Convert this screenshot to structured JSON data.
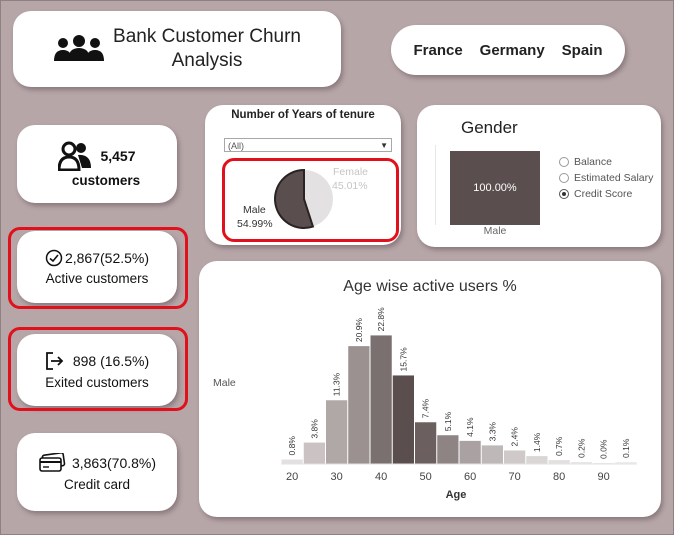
{
  "header": {
    "title_line1": "Bank Customer Churn",
    "title_line2": "Analysis"
  },
  "countries": [
    "France",
    "Germany",
    "Spain"
  ],
  "kpis": {
    "customers": {
      "value": "5,457",
      "label": "customers",
      "icon": "people-icon"
    },
    "active": {
      "value": "2,867(52.5%)",
      "label": "Active customers",
      "icon": "check-circle-icon"
    },
    "exited": {
      "value": "898 (16.5%)",
      "label": "Exited customers",
      "icon": "exit-icon"
    },
    "credit": {
      "value": "3,863(70.8%)",
      "label": "Credit card",
      "icon": "credit-card-icon"
    }
  },
  "tenure": {
    "title": "Number of Years of tenure",
    "filter_value": "(All)",
    "chart_data": {
      "type": "pie",
      "slices": [
        {
          "label": "Male",
          "value": 54.99,
          "display": "54.99%",
          "color": "#5a4e4e"
        },
        {
          "label": "Female",
          "value": 45.01,
          "display": "45.01%",
          "color": "#e3e1e1"
        }
      ]
    }
  },
  "gender": {
    "title": "Gender",
    "tile_value": "100.00%",
    "tile_label": "Male",
    "radio_options": [
      "Balance",
      "Estimated Salary",
      "Credit Score"
    ],
    "selected_option": "Credit Score"
  },
  "age_chart": {
    "title": "Age wise active users %",
    "row_label": "Male",
    "chart_data": {
      "type": "bar",
      "title": "Age wise active users %",
      "xlabel": "Age",
      "x": [
        20,
        25,
        30,
        35,
        40,
        45,
        50,
        55,
        60,
        65,
        70,
        75,
        80,
        85,
        90,
        95
      ],
      "values": [
        0.8,
        3.8,
        11.3,
        20.9,
        22.8,
        15.7,
        7.4,
        5.1,
        4.1,
        3.3,
        2.4,
        1.4,
        0.7,
        0.2,
        0.0,
        0.1
      ],
      "labels": [
        "0.8%",
        "3.8%",
        "11.3%",
        "20.9%",
        "22.8%",
        "15.7%",
        "7.4%",
        "5.1%",
        "4.1%",
        "3.3%",
        "2.4%",
        "1.4%",
        "0.7%",
        "0.2%",
        "0.0%",
        "0.1%"
      ],
      "x_ticks": [
        20,
        30,
        40,
        50,
        60,
        70,
        80,
        90
      ],
      "ylim": [
        0,
        25
      ],
      "colors": [
        "#e4e0e0",
        "#cbc3c3",
        "#b0a7a7",
        "#9b9191",
        "#7b7070",
        "#5a4e4e",
        "#6b5f5f",
        "#8e8484",
        "#aaa2a2",
        "#bfb8b8",
        "#cfc9c9",
        "#dbd6d6",
        "#e4e0e0",
        "#e9e6e6",
        "#ece9e9",
        "#efecec"
      ]
    }
  }
}
